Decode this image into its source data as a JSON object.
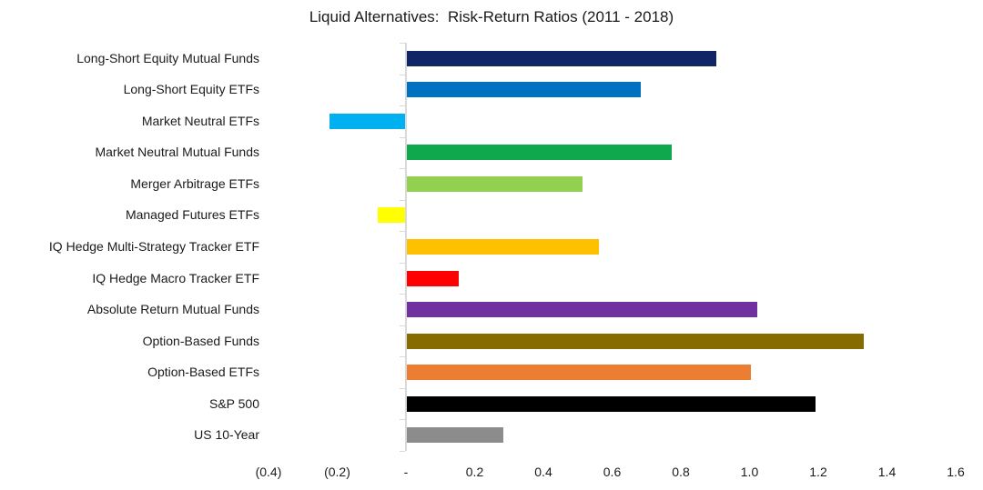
{
  "title": "Liquid Alternatives:  Risk-Return Ratios (2011 - 2018)",
  "chart_data": {
    "type": "bar",
    "orientation": "horizontal",
    "title": "Liquid Alternatives:  Risk-Return Ratios (2011 - 2018)",
    "xlabel": "",
    "ylabel": "",
    "xlim": [
      -0.4,
      1.6
    ],
    "x_tick_step": 0.2,
    "x_tick_labels": [
      "(0.4)",
      "(0.2)",
      "-",
      "0.2",
      "0.4",
      "0.6",
      "0.8",
      "1.0",
      "1.2",
      "1.4",
      "1.6"
    ],
    "grid": false,
    "legend": "none",
    "axis_color": "#d9d9d9",
    "background": "#ffffff",
    "categories": [
      "Long-Short Equity Mutual Funds",
      "Long-Short Equity ETFs",
      "Market Neutral ETFs",
      "Market Neutral Mutual Funds",
      "Merger Arbitrage ETFs",
      "Managed Futures ETFs",
      "IQ Hedge Multi-Strategy Tracker ETF",
      "IQ Hedge Macro Tracker ETF",
      "Absolute Return Mutual Funds",
      "Option-Based Funds",
      "Option-Based ETFs",
      "S&P 500",
      "US 10-Year"
    ],
    "values": [
      0.9,
      0.68,
      -0.22,
      0.77,
      0.51,
      -0.08,
      0.56,
      0.15,
      1.02,
      1.33,
      1.0,
      1.19,
      0.28
    ],
    "colors": [
      "#102566",
      "#0070C0",
      "#00B0F0",
      "#0FA84D",
      "#92D050",
      "#FFFF00",
      "#FFC000",
      "#FE0000",
      "#7030A0",
      "#856B00",
      "#ED7D31",
      "#000000",
      "#8C8C8C"
    ]
  }
}
